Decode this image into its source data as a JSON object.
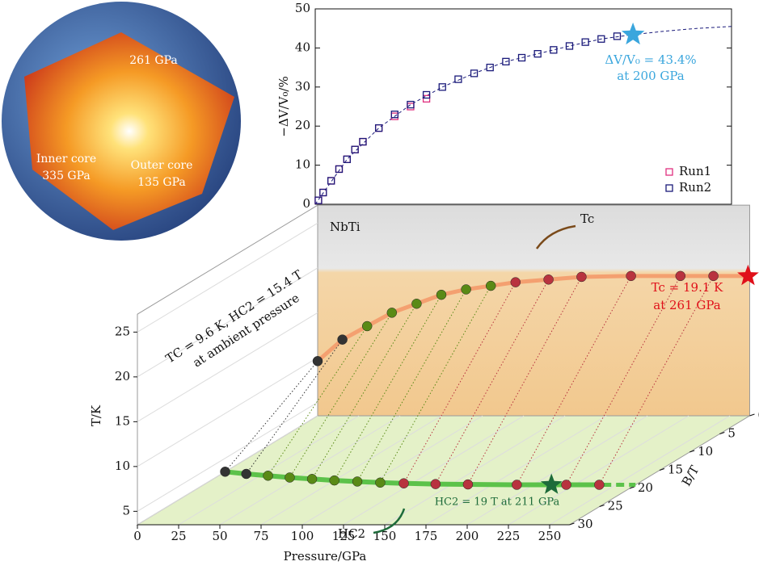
{
  "earth": {
    "labels": {
      "crust_boundary": "261 GPa",
      "inner_core": "Inner core",
      "inner_core_pressure": "335 GPa",
      "outer_core": "Outer core",
      "outer_core_pressure": "135 GPa"
    }
  },
  "chart_data": [
    {
      "type": "scatter",
      "ylabel": "−ΔV/V₀/%",
      "xlim": [
        0,
        262
      ],
      "ylim": [
        0,
        50
      ],
      "yticks": [
        0,
        10,
        20,
        30,
        40,
        50
      ],
      "series": [
        {
          "name": "Run1",
          "color": "#e0307f",
          "x": [
            2,
            5,
            10,
            15,
            20,
            25,
            30,
            40,
            50,
            60,
            70
          ],
          "values": [
            1,
            3,
            6,
            9,
            11.5,
            14,
            16,
            19.5,
            22.5,
            25,
            27
          ]
        },
        {
          "name": "Run2",
          "color": "#1a1a7a",
          "x": [
            2,
            5,
            10,
            15,
            20,
            25,
            30,
            40,
            50,
            60,
            70,
            80,
            90,
            100,
            110,
            120,
            130,
            140,
            150,
            160,
            170,
            180,
            190,
            200
          ],
          "values": [
            1,
            3,
            6,
            9,
            11.5,
            14,
            16,
            19.5,
            23,
            25.5,
            28,
            30,
            32,
            33.5,
            35,
            36.5,
            37.5,
            38.5,
            39.5,
            40.5,
            41.5,
            42.3,
            43,
            43.4
          ]
        }
      ],
      "fit": {
        "x": [
          0,
          20,
          40,
          60,
          80,
          100,
          120,
          140,
          160,
          180,
          200,
          220,
          240,
          262
        ],
        "values": [
          0,
          11.5,
          19.5,
          25.5,
          30,
          33.5,
          36.5,
          38.5,
          40.5,
          42.3,
          43.4,
          44.3,
          45,
          45.5
        ]
      },
      "highlight": {
        "x": 200,
        "value": 43.4,
        "color": "#3aa6dd"
      },
      "annotation": [
        "ΔV/V₀ = 43.4%",
        "at 200 GPa"
      ]
    },
    {
      "type": "scatter3d",
      "xlabel": "Pressure/GPa",
      "ylabel": "T/K",
      "zlabel": "B/T",
      "xlim": [
        0,
        262
      ],
      "xticks": [
        0,
        25,
        50,
        75,
        100,
        125,
        150,
        175,
        200,
        225,
        250
      ],
      "ylim": [
        3.5,
        27
      ],
      "yticks": [
        5,
        10,
        15,
        20,
        25
      ],
      "zlim": [
        0,
        30
      ],
      "zticks": [
        0,
        5,
        10,
        15,
        20,
        25,
        30
      ],
      "sample": "NbTi",
      "sweeps": {
        "pressure": [
          0,
          15,
          30,
          45,
          60,
          75,
          90,
          105,
          120,
          140,
          160,
          190,
          220,
          240
        ],
        "tc": [
          9.6,
          12,
          13.5,
          15,
          16,
          17,
          17.6,
          18,
          18.4,
          18.7,
          19,
          19.1,
          19.1,
          19.1
        ],
        "hc2": [
          15.4,
          16,
          16.5,
          17,
          17.4,
          17.8,
          18.1,
          18.4,
          18.6,
          18.8,
          18.9,
          19,
          19,
          19
        ],
        "colors": [
          "#333333",
          "#333333",
          "#5a8a16",
          "#5a8a16",
          "#5a8a16",
          "#5a8a16",
          "#5a8a16",
          "#5a8a16",
          "#b8333f",
          "#b8333f",
          "#b8333f",
          "#b8333f",
          "#b8333f",
          "#b8333f"
        ]
      },
      "tc_star": {
        "pressure": 261,
        "value": 19.1,
        "color": "#e0101a"
      },
      "hc2_star": {
        "pressure": 211,
        "value": 19,
        "color": "#1d6b3a"
      },
      "annotations": {
        "tc_label": "Tc",
        "tc_text": "Tc = 19.1 K",
        "tc_text2": "at 261 GPa",
        "hc2_label": "HC2",
        "hc2_text": "HC2 = 19 T at 211 GPa",
        "ambient": "TC = 9.6 K, HC2 = 15.4 T",
        "ambient2": "at ambient pressure"
      }
    }
  ]
}
